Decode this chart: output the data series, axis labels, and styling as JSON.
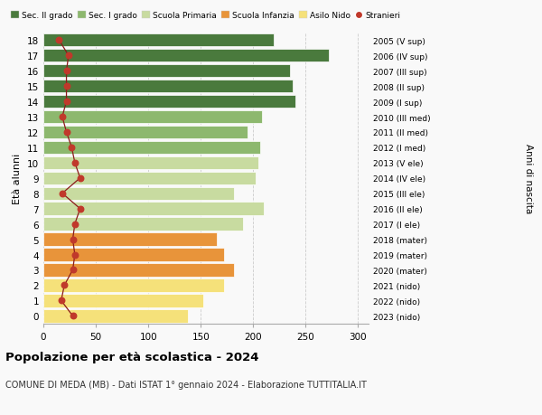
{
  "ages": [
    0,
    1,
    2,
    3,
    4,
    5,
    6,
    7,
    8,
    9,
    10,
    11,
    12,
    13,
    14,
    15,
    16,
    17,
    18
  ],
  "bar_values": [
    138,
    152,
    172,
    182,
    172,
    165,
    190,
    210,
    182,
    202,
    205,
    207,
    195,
    208,
    240,
    238,
    235,
    272,
    220
  ],
  "stranieri": [
    28,
    17,
    20,
    28,
    30,
    28,
    30,
    35,
    18,
    35,
    30,
    27,
    22,
    18,
    22,
    22,
    22,
    24,
    15
  ],
  "right_labels": [
    "2023 (nido)",
    "2022 (nido)",
    "2021 (nido)",
    "2020 (mater)",
    "2019 (mater)",
    "2018 (mater)",
    "2017 (I ele)",
    "2016 (II ele)",
    "2015 (III ele)",
    "2014 (IV ele)",
    "2013 (V ele)",
    "2012 (I med)",
    "2011 (II med)",
    "2010 (III med)",
    "2009 (I sup)",
    "2008 (II sup)",
    "2007 (III sup)",
    "2006 (IV sup)",
    "2005 (V sup)"
  ],
  "bar_colors": [
    "#f5e17a",
    "#f5e17a",
    "#f5e17a",
    "#e8943a",
    "#e8943a",
    "#e8943a",
    "#c8dba0",
    "#c8dba0",
    "#c8dba0",
    "#c8dba0",
    "#c8dba0",
    "#8db86e",
    "#8db86e",
    "#8db86e",
    "#4a7a3d",
    "#4a7a3d",
    "#4a7a3d",
    "#4a7a3d",
    "#4a7a3d"
  ],
  "legend_labels": [
    "Sec. II grado",
    "Sec. I grado",
    "Scuola Primaria",
    "Scuola Infanzia",
    "Asilo Nido",
    "Stranieri"
  ],
  "legend_colors": [
    "#4a7a3d",
    "#8db86e",
    "#c8dba0",
    "#e8943a",
    "#f5e17a",
    "#c0392b"
  ],
  "ylabel": "Età alunni",
  "right_ylabel": "Anni di nascita",
  "title": "Popolazione per età scolastica - 2024",
  "subtitle": "COMUNE DI MEDA (MB) - Dati ISTAT 1° gennaio 2024 - Elaborazione TUTTITALIA.IT",
  "xlim": [
    0,
    310
  ],
  "xticks": [
    0,
    50,
    100,
    150,
    200,
    250,
    300
  ],
  "background_color": "#f9f9f9",
  "grid_color": "#cccccc",
  "stranieri_color": "#c0392b",
  "stranieri_line_color": "#8b1a1a"
}
